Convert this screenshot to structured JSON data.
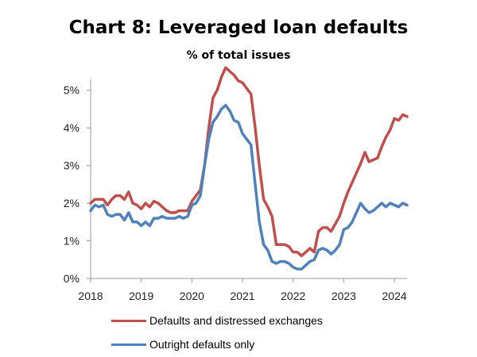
{
  "chart_data": {
    "type": "line",
    "title": "Chart 8: Leveraged loan defaults",
    "subtitle": "% of total issues",
    "xlabel": "",
    "ylabel": "",
    "xlim": [
      2018,
      2024.25
    ],
    "ylim": [
      0,
      5.5
    ],
    "x_ticks": [
      2018,
      2019,
      2020,
      2021,
      2022,
      2023,
      2024
    ],
    "x_tick_labels": [
      "2018",
      "2019",
      "2020",
      "2021",
      "2022",
      "2023",
      "2024"
    ],
    "y_ticks": [
      0,
      1,
      2,
      3,
      4,
      5
    ],
    "y_tick_labels": [
      "0%",
      "1%",
      "2%",
      "3%",
      "4%",
      "5%"
    ],
    "grid": false,
    "legend_position": "bottom",
    "series": [
      {
        "name": "Defaults and distressed exchanges",
        "color": "#c0504d",
        "x": [
          2018.0,
          2018.083,
          2018.167,
          2018.25,
          2018.333,
          2018.417,
          2018.5,
          2018.583,
          2018.667,
          2018.75,
          2018.833,
          2018.917,
          2019.0,
          2019.083,
          2019.167,
          2019.25,
          2019.333,
          2019.417,
          2019.5,
          2019.583,
          2019.667,
          2019.75,
          2019.833,
          2019.917,
          2020.0,
          2020.083,
          2020.167,
          2020.25,
          2020.333,
          2020.417,
          2020.5,
          2020.583,
          2020.667,
          2020.75,
          2020.833,
          2020.917,
          2021.0,
          2021.083,
          2021.167,
          2021.25,
          2021.333,
          2021.417,
          2021.5,
          2021.583,
          2021.667,
          2021.75,
          2021.833,
          2021.917,
          2022.0,
          2022.083,
          2022.167,
          2022.25,
          2022.333,
          2022.417,
          2022.5,
          2022.583,
          2022.667,
          2022.75,
          2022.833,
          2022.917,
          2023.0,
          2023.083,
          2023.167,
          2023.25,
          2023.333,
          2023.417,
          2023.5,
          2023.583,
          2023.667,
          2023.75,
          2023.833,
          2023.917,
          2024.0,
          2024.083,
          2024.167,
          2024.25
        ],
        "values": [
          2.0,
          2.1,
          2.1,
          2.1,
          1.95,
          2.1,
          2.2,
          2.2,
          2.1,
          2.3,
          2.0,
          1.95,
          1.85,
          2.0,
          1.9,
          2.05,
          2.0,
          1.9,
          1.8,
          1.75,
          1.75,
          1.8,
          1.8,
          1.8,
          2.05,
          2.2,
          2.35,
          3.0,
          4.0,
          4.8,
          5.0,
          5.35,
          5.6,
          5.5,
          5.4,
          5.25,
          5.2,
          5.05,
          4.9,
          4.0,
          3.0,
          2.1,
          1.9,
          1.65,
          0.9,
          0.9,
          0.9,
          0.85,
          0.7,
          0.7,
          0.6,
          0.7,
          0.8,
          0.7,
          1.25,
          1.35,
          1.35,
          1.25,
          1.45,
          1.65,
          2.0,
          2.3,
          2.55,
          2.8,
          3.05,
          3.35,
          3.1,
          3.15,
          3.2,
          3.5,
          3.75,
          3.95,
          4.25,
          4.2,
          4.35,
          4.3
        ]
      },
      {
        "name": "Outright defaults only",
        "color": "#4f81bd",
        "x": [
          2018.0,
          2018.083,
          2018.167,
          2018.25,
          2018.333,
          2018.417,
          2018.5,
          2018.583,
          2018.667,
          2018.75,
          2018.833,
          2018.917,
          2019.0,
          2019.083,
          2019.167,
          2019.25,
          2019.333,
          2019.417,
          2019.5,
          2019.583,
          2019.667,
          2019.75,
          2019.833,
          2019.917,
          2020.0,
          2020.083,
          2020.167,
          2020.25,
          2020.333,
          2020.417,
          2020.5,
          2020.583,
          2020.667,
          2020.75,
          2020.833,
          2020.917,
          2021.0,
          2021.083,
          2021.167,
          2021.25,
          2021.333,
          2021.417,
          2021.5,
          2021.583,
          2021.667,
          2021.75,
          2021.833,
          2021.917,
          2022.0,
          2022.083,
          2022.167,
          2022.25,
          2022.333,
          2022.417,
          2022.5,
          2022.583,
          2022.667,
          2022.75,
          2022.833,
          2022.917,
          2023.0,
          2023.083,
          2023.167,
          2023.25,
          2023.333,
          2023.417,
          2023.5,
          2023.583,
          2023.667,
          2023.75,
          2023.833,
          2023.917,
          2024.0,
          2024.083,
          2024.167,
          2024.25
        ],
        "values": [
          1.8,
          1.95,
          1.9,
          1.95,
          1.7,
          1.65,
          1.7,
          1.7,
          1.55,
          1.75,
          1.5,
          1.5,
          1.4,
          1.5,
          1.4,
          1.6,
          1.6,
          1.65,
          1.6,
          1.6,
          1.6,
          1.65,
          1.6,
          1.65,
          1.95,
          2.0,
          2.2,
          3.0,
          3.7,
          4.15,
          4.3,
          4.5,
          4.6,
          4.45,
          4.2,
          4.15,
          3.85,
          3.7,
          3.55,
          2.5,
          1.5,
          0.9,
          0.75,
          0.45,
          0.4,
          0.45,
          0.45,
          0.4,
          0.3,
          0.25,
          0.25,
          0.35,
          0.45,
          0.5,
          0.75,
          0.8,
          0.75,
          0.65,
          0.75,
          0.9,
          1.3,
          1.35,
          1.5,
          1.75,
          2.0,
          1.85,
          1.75,
          1.8,
          1.9,
          2.0,
          1.9,
          2.0,
          1.95,
          1.9,
          2.0,
          1.95
        ]
      }
    ]
  }
}
